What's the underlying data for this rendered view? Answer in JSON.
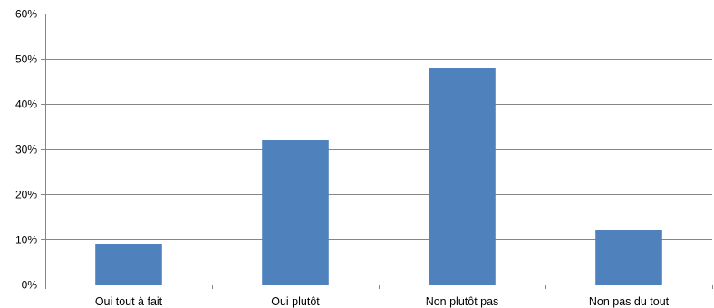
{
  "chart_data": {
    "type": "bar",
    "categories": [
      "Oui tout à fait",
      "Oui plutôt",
      "Non plutôt pas",
      "Non pas du tout"
    ],
    "values": [
      9,
      32,
      48,
      12
    ],
    "ylim": [
      0,
      60
    ],
    "yticks": [
      0,
      10,
      20,
      30,
      40,
      50,
      60
    ],
    "ytick_labels": [
      "0%",
      "10%",
      "20%",
      "30%",
      "40%",
      "50%",
      "60%"
    ],
    "grid": true,
    "legend": "none",
    "bar_color": "#4F81BD",
    "grid_color": "#868686",
    "axis_color": "#868686"
  }
}
